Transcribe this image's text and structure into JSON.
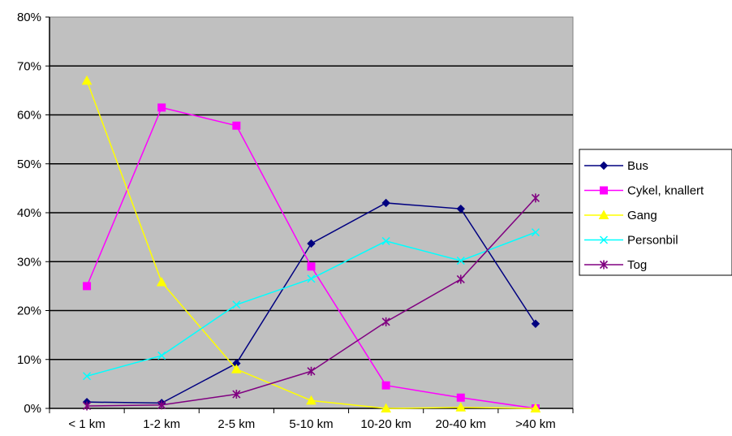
{
  "chart_data": {
    "type": "line",
    "title": "",
    "xlabel": "",
    "ylabel": "",
    "categories": [
      "< 1 km",
      "1-2 km",
      "2-5 km",
      "5-10 km",
      "10-20 km",
      "20-40 km",
      ">40 km"
    ],
    "y_ticks": [
      "0%",
      "10%",
      "20%",
      "30%",
      "40%",
      "50%",
      "60%",
      "70%",
      "80%"
    ],
    "ylim": [
      0,
      80
    ],
    "y_unit": "%",
    "grid": true,
    "plot_background": "#c0c0c0",
    "legend_position": "right",
    "series": [
      {
        "name": "Bus",
        "color": "#000080",
        "marker": "diamond",
        "values": [
          1.3,
          1.1,
          9.2,
          33.7,
          42.0,
          40.8,
          17.3
        ]
      },
      {
        "name": "Cykel, knallert",
        "color": "#ff00ff",
        "marker": "square",
        "values": [
          25.0,
          61.5,
          57.8,
          29.0,
          4.7,
          2.2,
          0.0
        ]
      },
      {
        "name": "Gang",
        "color": "#ffff00",
        "marker": "triangle",
        "values": [
          67.0,
          25.8,
          8.0,
          1.6,
          0.0,
          0.2,
          0.0
        ]
      },
      {
        "name": "Personbil",
        "color": "#00ffff",
        "marker": "x",
        "values": [
          6.6,
          10.8,
          21.2,
          26.5,
          34.2,
          30.2,
          36.0
        ]
      },
      {
        "name": "Tog",
        "color": "#800080",
        "marker": "star",
        "values": [
          0.5,
          0.7,
          2.9,
          7.6,
          17.7,
          26.4,
          43.0
        ]
      }
    ]
  }
}
